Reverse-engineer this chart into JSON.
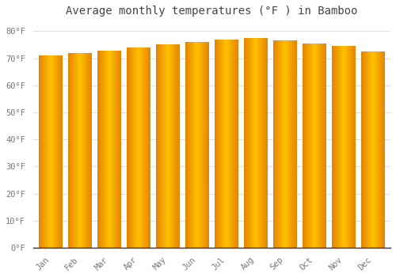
{
  "months": [
    "Jan",
    "Feb",
    "Mar",
    "Apr",
    "May",
    "Jun",
    "Jul",
    "Aug",
    "Sep",
    "Oct",
    "Nov",
    "Dec"
  ],
  "values": [
    71.1,
    71.8,
    72.9,
    73.9,
    75.0,
    76.1,
    76.8,
    77.4,
    76.6,
    75.5,
    74.5,
    72.5
  ],
  "bar_color_center": "#FFBB00",
  "bar_color_edge": "#F09000",
  "background_color": "#ffffff",
  "plot_bg_color": "#ffffff",
  "title": "Average monthly temperatures (°F ) in Bamboo",
  "title_fontsize": 10,
  "ylabel_ticks": [
    "0°F",
    "10°F",
    "20°F",
    "30°F",
    "40°F",
    "50°F",
    "60°F",
    "70°F",
    "80°F"
  ],
  "ytick_vals": [
    0,
    10,
    20,
    30,
    40,
    50,
    60,
    70,
    80
  ],
  "ylim": [
    0,
    83
  ],
  "grid_color": "#e0e0d8",
  "tick_color": "#999999",
  "font_color": "#777777",
  "title_color": "#444444"
}
